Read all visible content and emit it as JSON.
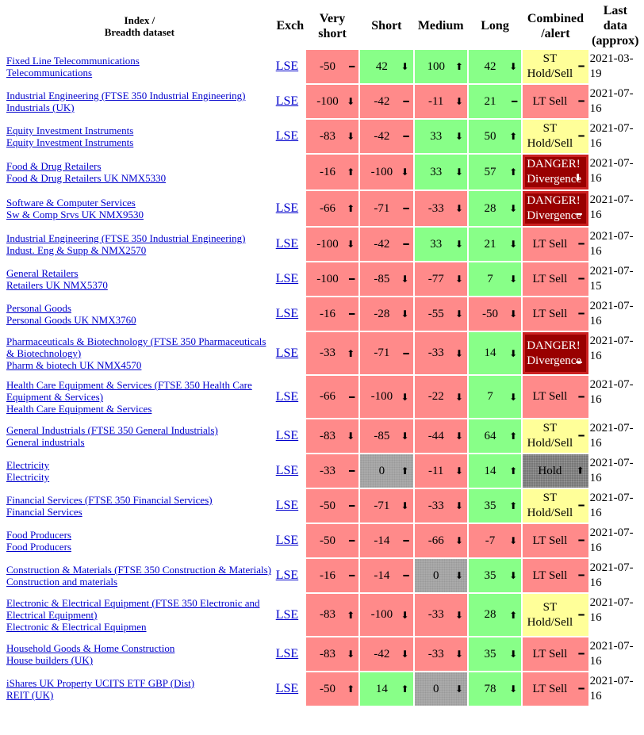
{
  "header": {
    "index": [
      "Index /",
      "Breadth dataset"
    ],
    "exch": "Exch",
    "very_short": "Very short",
    "short": "Short",
    "medium": "Medium",
    "long": "Long",
    "combined": "Combined /alert",
    "date": "Last data (approx)"
  },
  "rows": [
    {
      "index": [
        "Fixed Line Telecommunications",
        "Telecommunications"
      ],
      "exch": "LSE",
      "very_short": {
        "value": -50,
        "arrow": "━"
      },
      "short": {
        "value": 42,
        "arrow": "⬇"
      },
      "medium": {
        "value": 100,
        "arrow": "⬆"
      },
      "long": {
        "value": 42,
        "arrow": "⬇"
      },
      "combined": {
        "label": "ST Hold/Sell",
        "arrow": "━",
        "tone": "yellow"
      },
      "date": "2021-03-19"
    },
    {
      "index": [
        "Industrial Engineering (FTSE 350 Industrial Engineering)",
        "Industrials (UK)"
      ],
      "exch": "LSE",
      "very_short": {
        "value": -100,
        "arrow": "⬇"
      },
      "short": {
        "value": -42,
        "arrow": "━"
      },
      "medium": {
        "value": -11,
        "arrow": "⬇"
      },
      "long": {
        "value": 21,
        "arrow": "━"
      },
      "combined": {
        "label": "LT Sell",
        "arrow": "━",
        "tone": "red"
      },
      "date": "2021-07-16"
    },
    {
      "index": [
        "Equity Investment Instruments",
        "Equity Investment Instruments"
      ],
      "exch": "LSE",
      "very_short": {
        "value": -83,
        "arrow": "⬇"
      },
      "short": {
        "value": -42,
        "arrow": "━"
      },
      "medium": {
        "value": 33,
        "arrow": "⬇"
      },
      "long": {
        "value": 50,
        "arrow": "⬆"
      },
      "combined": {
        "label": "ST Hold/Sell",
        "arrow": "━",
        "tone": "yellow"
      },
      "date": "2021-07-16"
    },
    {
      "index": [
        "Food & Drug Retailers",
        "Food & Drug Retailers UK NMX5330"
      ],
      "very_short": {
        "value": -16,
        "arrow": "⬆"
      },
      "short": {
        "value": -100,
        "arrow": "⬇"
      },
      "medium": {
        "value": 33,
        "arrow": "⬇"
      },
      "long": {
        "value": 57,
        "arrow": "⬆"
      },
      "combined": {
        "label": "DANGER! Divergence",
        "arrow": "⬇",
        "tone": "danger"
      },
      "date": "2021-07-16"
    },
    {
      "index": [
        "Software & Computer Services",
        "Sw & Comp Srvs UK NMX9530"
      ],
      "exch": "LSE",
      "very_short": {
        "value": -66,
        "arrow": "⬆"
      },
      "short": {
        "value": -71,
        "arrow": "━"
      },
      "medium": {
        "value": -33,
        "arrow": "⬇"
      },
      "long": {
        "value": 28,
        "arrow": "⬇"
      },
      "combined": {
        "label": "DANGER! Divergence",
        "arrow": "━",
        "tone": "danger"
      },
      "date": "2021-07-16"
    },
    {
      "index": [
        "Industrial Engineering (FTSE 350 Industrial Engineering)",
        "Indust. Eng & Supp & NMX2570"
      ],
      "exch": "LSE",
      "very_short": {
        "value": -100,
        "arrow": "⬇"
      },
      "short": {
        "value": -42,
        "arrow": "━"
      },
      "medium": {
        "value": 33,
        "arrow": "⬇"
      },
      "long": {
        "value": 21,
        "arrow": "⬇"
      },
      "combined": {
        "label": "LT Sell",
        "arrow": "━",
        "tone": "red"
      },
      "date": "2021-07-16"
    },
    {
      "index": [
        "General Retailers",
        "Retailers UK NMX5370"
      ],
      "exch": "LSE",
      "very_short": {
        "value": -100,
        "arrow": "━"
      },
      "short": {
        "value": -85,
        "arrow": "⬇"
      },
      "medium": {
        "value": -77,
        "arrow": "⬇"
      },
      "long": {
        "value": 7,
        "arrow": "⬇"
      },
      "combined": {
        "label": "LT Sell",
        "arrow": "━",
        "tone": "red"
      },
      "date": "2021-07-15"
    },
    {
      "index": [
        "Personal Goods",
        "Personal Goods UK NMX3760"
      ],
      "exch": "LSE",
      "very_short": {
        "value": -16,
        "arrow": "━"
      },
      "short": {
        "value": -28,
        "arrow": "⬇"
      },
      "medium": {
        "value": -55,
        "arrow": "⬇"
      },
      "long": {
        "value": -50,
        "arrow": "⬇"
      },
      "combined": {
        "label": "LT Sell",
        "arrow": "━",
        "tone": "red"
      },
      "date": "2021-07-16"
    },
    {
      "index": [
        "Pharmaceuticals & Biotechnology (FTSE 350 Pharmaceuticals & Biotechnology)",
        "Pharm & biotech UK NMX4570"
      ],
      "exch": "LSE",
      "very_short": {
        "value": -33,
        "arrow": "⬆"
      },
      "short": {
        "value": -71,
        "arrow": "━"
      },
      "medium": {
        "value": -33,
        "arrow": "⬇"
      },
      "long": {
        "value": 14,
        "arrow": "⬇"
      },
      "combined": {
        "label": "DANGER! Divergence",
        "arrow": "━",
        "tone": "danger"
      },
      "date": "2021-07-16"
    },
    {
      "index": [
        "Health Care Equipment & Services (FTSE 350 Health Care Equipment & Services)",
        "Health Care Equipment & Services"
      ],
      "exch": "LSE",
      "very_short": {
        "value": -66,
        "arrow": "━"
      },
      "short": {
        "value": -100,
        "arrow": "⬇"
      },
      "medium": {
        "value": -22,
        "arrow": "⬇"
      },
      "long": {
        "value": 7,
        "arrow": "⬇"
      },
      "combined": {
        "label": "LT Sell",
        "arrow": "━",
        "tone": "red"
      },
      "date": "2021-07-16"
    },
    {
      "index": [
        "General Industrials (FTSE 350 General Industrials)",
        "General industrials"
      ],
      "exch": "LSE",
      "very_short": {
        "value": -83,
        "arrow": "⬇"
      },
      "short": {
        "value": -85,
        "arrow": "⬇"
      },
      "medium": {
        "value": -44,
        "arrow": "⬇"
      },
      "long": {
        "value": 64,
        "arrow": "⬆"
      },
      "combined": {
        "label": "ST Hold/Sell",
        "arrow": "━",
        "tone": "yellow"
      },
      "date": "2021-07-16"
    },
    {
      "index": [
        "Electricity",
        "Electricity"
      ],
      "exch": "LSE",
      "very_short": {
        "value": -33,
        "arrow": "━"
      },
      "short": {
        "value": 0,
        "arrow": "⬆"
      },
      "medium": {
        "value": -11,
        "arrow": "⬇"
      },
      "long": {
        "value": 14,
        "arrow": "⬆"
      },
      "combined": {
        "label": "Hold",
        "arrow": "⬆",
        "tone": "gray"
      },
      "date": "2021-07-16"
    },
    {
      "index": [
        "Financial Services (FTSE 350 Financial Services)",
        "Financial Services"
      ],
      "exch": "LSE",
      "very_short": {
        "value": -50,
        "arrow": "━"
      },
      "short": {
        "value": -71,
        "arrow": "⬇"
      },
      "medium": {
        "value": -33,
        "arrow": "⬇"
      },
      "long": {
        "value": 35,
        "arrow": "⬆"
      },
      "combined": {
        "label": "ST Hold/Sell",
        "arrow": "━",
        "tone": "yellow"
      },
      "date": "2021-07-16"
    },
    {
      "index": [
        "Food Producers",
        "Food Producers"
      ],
      "exch": "LSE",
      "very_short": {
        "value": -50,
        "arrow": "━"
      },
      "short": {
        "value": -14,
        "arrow": "━"
      },
      "medium": {
        "value": -66,
        "arrow": "⬇"
      },
      "long": {
        "value": -7,
        "arrow": "⬇"
      },
      "combined": {
        "label": "LT Sell",
        "arrow": "━",
        "tone": "red"
      },
      "date": "2021-07-16"
    },
    {
      "index": [
        "Construction & Materials (FTSE 350 Construction & Materials)",
        "Construction and materials"
      ],
      "exch": "LSE",
      "very_short": {
        "value": -16,
        "arrow": "━"
      },
      "short": {
        "value": -14,
        "arrow": "━"
      },
      "medium": {
        "value": 0,
        "arrow": "⬇"
      },
      "long": {
        "value": 35,
        "arrow": "⬇"
      },
      "combined": {
        "label": "LT Sell",
        "arrow": "━",
        "tone": "red"
      },
      "date": "2021-07-16"
    },
    {
      "index": [
        "Electronic & Electrical Equipment (FTSE 350 Electronic and Electrical Equipment)",
        "Electronic & Electrical Equipmen"
      ],
      "exch": "LSE",
      "very_short": {
        "value": -83,
        "arrow": "⬆"
      },
      "short": {
        "value": -100,
        "arrow": "⬇"
      },
      "medium": {
        "value": -33,
        "arrow": "⬇"
      },
      "long": {
        "value": 28,
        "arrow": "⬆"
      },
      "combined": {
        "label": "ST Hold/Sell",
        "arrow": "━",
        "tone": "yellow"
      },
      "date": "2021-07-16"
    },
    {
      "index": [
        "Household Goods & Home Construction",
        "House builders (UK)"
      ],
      "exch": "LSE",
      "very_short": {
        "value": -83,
        "arrow": "⬇"
      },
      "short": {
        "value": -42,
        "arrow": "⬇"
      },
      "medium": {
        "value": -33,
        "arrow": "⬇"
      },
      "long": {
        "value": 35,
        "arrow": "⬇"
      },
      "combined": {
        "label": "LT Sell",
        "arrow": "━",
        "tone": "red"
      },
      "date": "2021-07-16"
    },
    {
      "index": [
        "iShares UK Property UCITS ETF GBP (Dist)",
        "REIT (UK)"
      ],
      "exch": "LSE",
      "very_short": {
        "value": -50,
        "arrow": "⬆"
      },
      "short": {
        "value": 14,
        "arrow": "⬆"
      },
      "medium": {
        "value": 0,
        "arrow": "⬇"
      },
      "long": {
        "value": 78,
        "arrow": "⬇"
      },
      "combined": {
        "label": "LT Sell",
        "arrow": "━",
        "tone": "red"
      },
      "date": "2021-07-16"
    }
  ]
}
